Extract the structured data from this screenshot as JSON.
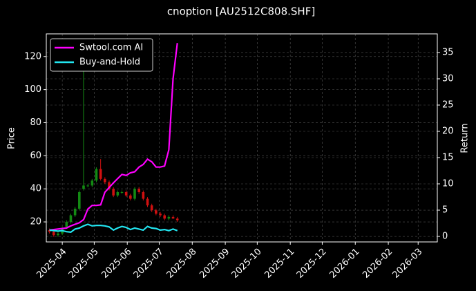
{
  "chart_data": {
    "type": "candlestick",
    "title": "cnoption [AU2512C808.SHF]",
    "ylabel": "Price",
    "y2label": "Return",
    "x": [
      "2025-03-20",
      "2025-03-24",
      "2025-03-28",
      "2025-04-01",
      "2025-04-05",
      "2025-04-09",
      "2025-04-13",
      "2025-04-17",
      "2025-04-21",
      "2025-04-25",
      "2025-04-29",
      "2025-05-03",
      "2025-05-07",
      "2025-05-11",
      "2025-05-15",
      "2025-05-19",
      "2025-05-23",
      "2025-05-27",
      "2025-05-31",
      "2025-06-04",
      "2025-06-08",
      "2025-06-12",
      "2025-06-16",
      "2025-06-20",
      "2025-06-24",
      "2025-06-28",
      "2025-07-02",
      "2025-07-06",
      "2025-07-10",
      "2025-07-14",
      "2025-07-18"
    ],
    "open": [
      15,
      14,
      12,
      13,
      17,
      20,
      24,
      28,
      40,
      42,
      42,
      45,
      52,
      46,
      44,
      40,
      36,
      38,
      38,
      36,
      34,
      40,
      38,
      34,
      30,
      27,
      25,
      24,
      22,
      23,
      22
    ],
    "high": [
      16,
      15,
      14,
      17,
      21,
      25,
      29,
      39,
      115,
      43,
      46,
      53,
      58,
      47,
      45,
      41,
      39,
      39,
      39,
      37,
      41,
      41,
      39,
      35,
      31,
      28,
      26,
      25,
      24,
      24,
      23
    ],
    "low": [
      13,
      11,
      11,
      12,
      16,
      19,
      23,
      27,
      39,
      41,
      41,
      44,
      45,
      43,
      39,
      35,
      35,
      37,
      35,
      33,
      33,
      37,
      33,
      29,
      26,
      24,
      23,
      21,
      21,
      22,
      20
    ],
    "close": [
      14,
      12,
      13,
      16,
      20,
      24,
      28,
      38,
      42,
      42,
      45,
      52,
      46,
      44,
      40,
      36,
      38,
      38,
      36,
      34,
      40,
      38,
      34,
      30,
      27,
      25,
      24,
      22,
      23,
      22,
      21
    ],
    "up_color": "#138a13",
    "down_color": "#d01010",
    "series": [
      {
        "name": "Swtool.com AI",
        "color": "#ff00ff",
        "axis": "y2",
        "values": [
          1.2,
          1.3,
          1.4,
          1.5,
          1.6,
          2.0,
          2.3,
          2.6,
          3.2,
          5.2,
          5.9,
          5.9,
          6.0,
          8.4,
          9.3,
          10.2,
          11.0,
          11.8,
          11.6,
          12.1,
          12.3,
          13.2,
          13.7,
          14.7,
          14.2,
          13.2,
          13.2,
          13.4,
          16.5,
          30.0,
          36.8
        ]
      },
      {
        "name": "Buy-and-Hold",
        "color": "#22e5f0",
        "axis": "y2",
        "values": [
          1.2,
          1.1,
          1.0,
          1.1,
          0.9,
          0.8,
          1.4,
          1.6,
          2.0,
          2.3,
          2.0,
          2.1,
          2.1,
          2.0,
          1.8,
          1.2,
          1.6,
          1.9,
          1.7,
          1.3,
          1.6,
          1.4,
          1.2,
          1.9,
          1.6,
          1.5,
          1.2,
          1.3,
          1.1,
          1.4,
          1.1
        ]
      }
    ],
    "xlim": [
      "2025-03-17",
      "2026-03-19"
    ],
    "xticks": [
      "2025-04",
      "2025-05",
      "2025-06",
      "2025-07",
      "2025-08",
      "2025-09",
      "2025-10",
      "2025-11",
      "2025-12",
      "2026-01",
      "2026-02",
      "2026-03"
    ],
    "ylim": [
      7.9,
      133.7
    ],
    "yticks": [
      20,
      40,
      60,
      80,
      100,
      120
    ],
    "y2lim": [
      -1.05,
      38.55
    ],
    "y2ticks": [
      0,
      5,
      10,
      15,
      20,
      25,
      30,
      35
    ],
    "grid": true,
    "legend": "upper left"
  }
}
